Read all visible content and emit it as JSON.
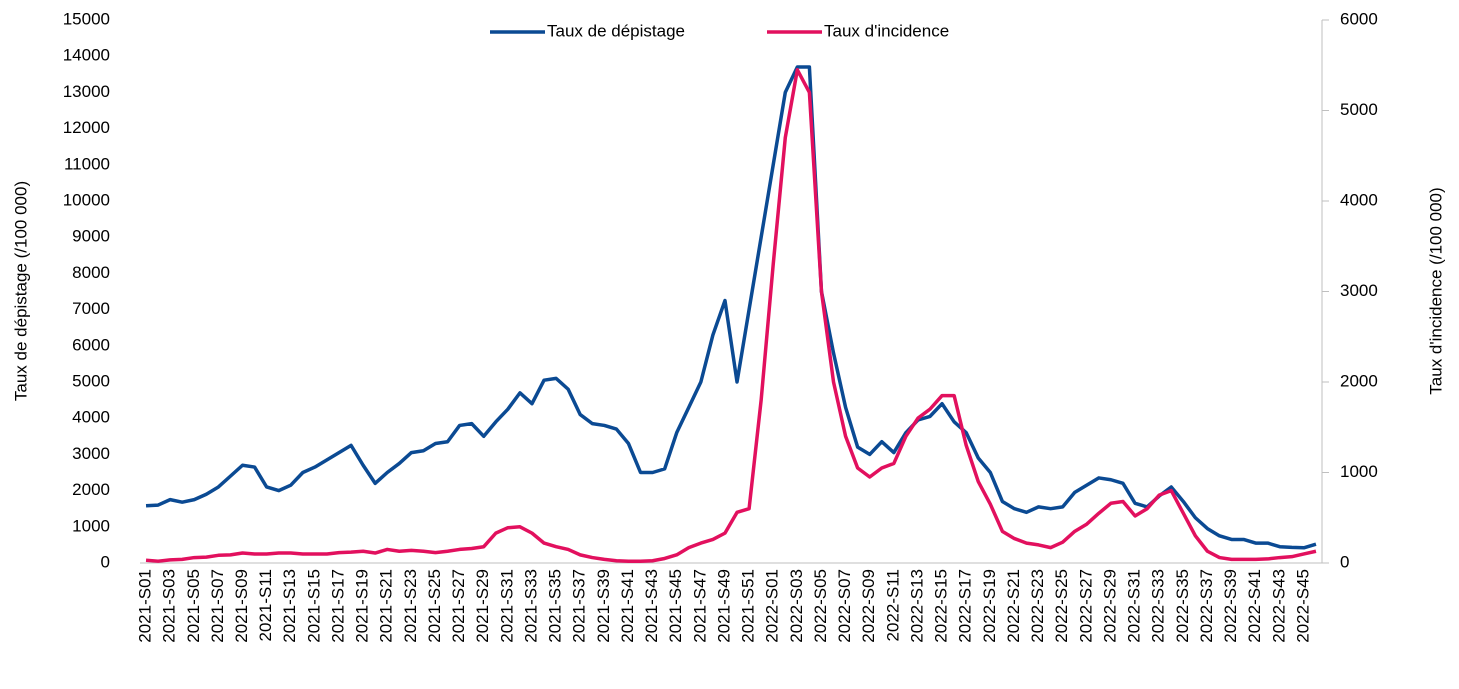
{
  "chart_data": {
    "type": "line",
    "categories": [
      "2021-S01",
      null,
      "2021-S03",
      null,
      "2021-S05",
      null,
      "2021-S07",
      null,
      "2021-S09",
      null,
      "2021-S11",
      null,
      "2021-S13",
      null,
      "2021-S15",
      null,
      "2021-S17",
      null,
      "2021-S19",
      null,
      "2021-S21",
      null,
      "2021-S23",
      null,
      "2021-S25",
      null,
      "2021-S27",
      null,
      "2021-S29",
      null,
      "2021-S31",
      null,
      "2021-S33",
      null,
      "2021-S35",
      null,
      "2021-S37",
      null,
      "2021-S39",
      null,
      "2021-S41",
      null,
      "2021-S43",
      null,
      "2021-S45",
      null,
      "2021-S47",
      null,
      "2021-S49",
      null,
      "2021-S51",
      null,
      "2022-S01",
      null,
      "2022-S03",
      null,
      "2022-S05",
      null,
      "2022-S07",
      null,
      "2022-S09",
      null,
      "2022-S11",
      null,
      "2022-S13",
      null,
      "2022-S15",
      null,
      "2022-S17",
      null,
      "2022-S19",
      null,
      "2022-S21",
      null,
      "2022-S23",
      null,
      "2022-S25",
      null,
      "2022-S27",
      null,
      "2022-S29",
      null,
      "2022-S31",
      null,
      "2022-S33",
      null,
      "2022-S35",
      null,
      "2022-S37",
      null,
      "2022-S39",
      null,
      "2022-S41",
      null,
      "2022-S43",
      null,
      "2022-S45",
      null
    ],
    "series": [
      {
        "name": "Taux de dépistage",
        "color": "#0b4a93",
        "values": [
          1580,
          1600,
          1750,
          1680,
          1750,
          1900,
          2100,
          2400,
          2700,
          2650,
          2100,
          2000,
          2150,
          2500,
          2650,
          2850,
          3050,
          3250,
          2700,
          2200,
          2500,
          2750,
          3050,
          3100,
          3300,
          3350,
          3800,
          3850,
          3500,
          3900,
          4250,
          4700,
          4400,
          5050,
          5100,
          4800,
          4100,
          3850,
          3800,
          3700,
          3300,
          2500,
          2500,
          2600,
          3600,
          4300,
          5000,
          6300,
          7250,
          5000,
          7000,
          9000,
          11000,
          13000,
          13700,
          13700,
          7500,
          5800,
          4300,
          3200,
          3000,
          3350,
          3050,
          3600,
          3950,
          4050,
          4400,
          3900,
          3600,
          2900,
          2500,
          1700,
          1500,
          1400,
          1550,
          1500,
          1550,
          1950,
          2150,
          2350,
          2300,
          2200,
          1650,
          1550,
          1850,
          2100,
          1700,
          1250,
          950,
          750,
          650,
          650,
          550,
          550,
          450,
          430,
          420,
          520
        ]
      },
      {
        "name": "Taux d'incidence",
        "color": "#e2105e",
        "axis": "y2",
        "values": [
          30,
          20,
          35,
          40,
          60,
          65,
          85,
          90,
          110,
          100,
          100,
          110,
          110,
          100,
          100,
          100,
          115,
          120,
          130,
          110,
          150,
          130,
          140,
          130,
          115,
          130,
          150,
          160,
          180,
          330,
          390,
          400,
          330,
          220,
          180,
          150,
          90,
          60,
          40,
          25,
          20,
          20,
          25,
          50,
          90,
          170,
          220,
          260,
          330,
          560,
          600,
          1800,
          3300,
          4700,
          5450,
          5200,
          3000,
          2000,
          1400,
          1050,
          950,
          1050,
          1100,
          1400,
          1600,
          1700,
          1850,
          1850,
          1300,
          900,
          650,
          350,
          270,
          220,
          200,
          170,
          230,
          350,
          430,
          550,
          660,
          680,
          520,
          600,
          750,
          800,
          550,
          300,
          130,
          60,
          40,
          40,
          40,
          45,
          60,
          70,
          100,
          130
        ]
      }
    ],
    "ylabel": "Taux de dépistage (/100 000)",
    "y2label": "Taux d'incidence (/100 000)",
    "ylim": [
      0,
      15000
    ],
    "yticks": [
      0,
      1000,
      2000,
      3000,
      4000,
      5000,
      6000,
      7000,
      8000,
      9000,
      10000,
      11000,
      12000,
      13000,
      14000,
      15000
    ],
    "y2lim": [
      0,
      6000
    ],
    "y2ticks": [
      0,
      1000,
      2000,
      3000,
      4000,
      5000,
      6000
    ],
    "legend": "top"
  }
}
